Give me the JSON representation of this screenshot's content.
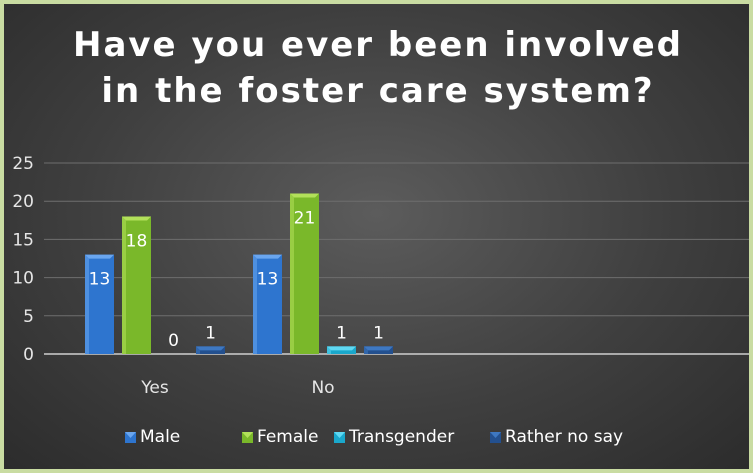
{
  "chart_data": {
    "type": "bar",
    "title_lines": [
      "Have you ever been involved",
      "in the foster care system?"
    ],
    "categories": [
      "Yes",
      "No"
    ],
    "series": [
      {
        "name": "Male",
        "values": [
          13,
          13
        ],
        "color": "#2e75cf",
        "light": "#6aa6ef",
        "label_color": "#ffffff"
      },
      {
        "name": "Female",
        "values": [
          18,
          21
        ],
        "color": "#7ab82a",
        "light": "#b2e05a",
        "label_color": "#ffffff"
      },
      {
        "name": "Transgender",
        "values": [
          0,
          1
        ],
        "color": "#1aa8cc",
        "light": "#5fd8f2",
        "label_color": "#ffffff"
      },
      {
        "name": "Rather no say",
        "values": [
          1,
          1
        ],
        "color": "#23508f",
        "light": "#3e78c2",
        "label_color": "#ffffff"
      }
    ],
    "ylim": [
      0,
      25
    ],
    "yticks": [
      "0",
      "5",
      "10",
      "15",
      "20",
      "25"
    ],
    "gridlines": true,
    "legend_position": "bottom"
  }
}
